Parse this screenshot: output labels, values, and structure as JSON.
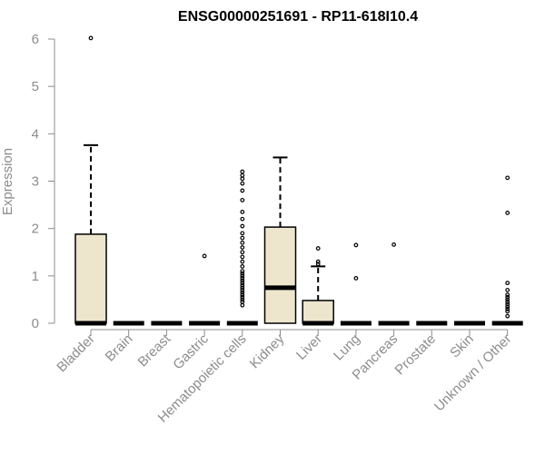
{
  "chart_data": {
    "type": "box",
    "title": "ENSG00000251691 - RP11-618I10.4",
    "xlabel": "",
    "ylabel": "Expression",
    "ylim": [
      0,
      6
    ],
    "yticks": [
      "0",
      "1",
      "2",
      "3",
      "4",
      "5",
      "6"
    ],
    "grid": false,
    "box_fill": "#ede6cd",
    "outline_color": "#000000",
    "axis_text_color": "#8c8c8c",
    "categories": [
      "Bladder",
      "Brain",
      "Breast",
      "Gastric",
      "Hematopoietic cells",
      "Kidney",
      "Liver",
      "Lung",
      "Pancreas",
      "Prostate",
      "Skin",
      "Unknown / Other"
    ],
    "boxes": [
      {
        "category": "Bladder",
        "q1": 0,
        "median": 0,
        "q3": 1.88,
        "whisker_low": 0,
        "whisker_high": 3.76,
        "outliers": [
          6.02
        ]
      },
      {
        "category": "Brain",
        "q1": 0,
        "median": 0,
        "q3": 0,
        "whisker_low": 0,
        "whisker_high": 0,
        "outliers": []
      },
      {
        "category": "Breast",
        "q1": 0,
        "median": 0,
        "q3": 0,
        "whisker_low": 0,
        "whisker_high": 0,
        "outliers": []
      },
      {
        "category": "Gastric",
        "q1": 0,
        "median": 0,
        "q3": 0,
        "whisker_low": 0,
        "whisker_high": 0,
        "outliers": [
          1.42
        ]
      },
      {
        "category": "Hematopoietic cells",
        "q1": 0,
        "median": 0,
        "q3": 0,
        "whisker_low": 0,
        "whisker_high": 0,
        "outliers": [
          0.38,
          0.45,
          0.5,
          0.55,
          0.6,
          0.65,
          0.7,
          0.75,
          0.8,
          0.85,
          0.9,
          0.95,
          1.0,
          1.05,
          1.1,
          1.2,
          1.3,
          1.4,
          1.5,
          1.6,
          1.7,
          1.8,
          1.9,
          2.05,
          2.2,
          2.35,
          2.6,
          2.8,
          2.95,
          3.05,
          3.12,
          3.2
        ]
      },
      {
        "category": "Kidney",
        "q1": 0,
        "median": 0.75,
        "q3": 2.03,
        "whisker_low": 0,
        "whisker_high": 3.5,
        "outliers": []
      },
      {
        "category": "Liver",
        "q1": 0,
        "median": 0,
        "q3": 0.48,
        "whisker_low": 0,
        "whisker_high": 1.2,
        "outliers": [
          1.25,
          1.3,
          1.58
        ]
      },
      {
        "category": "Lung",
        "q1": 0,
        "median": 0,
        "q3": 0,
        "whisker_low": 0,
        "whisker_high": 0,
        "outliers": [
          0.95,
          1.65
        ]
      },
      {
        "category": "Pancreas",
        "q1": 0,
        "median": 0,
        "q3": 0,
        "whisker_low": 0,
        "whisker_high": 0,
        "outliers": [
          1.66
        ]
      },
      {
        "category": "Prostate",
        "q1": 0,
        "median": 0,
        "q3": 0,
        "whisker_low": 0,
        "whisker_high": 0,
        "outliers": []
      },
      {
        "category": "Skin",
        "q1": 0,
        "median": 0,
        "q3": 0,
        "whisker_low": 0,
        "whisker_high": 0,
        "outliers": []
      },
      {
        "category": "Unknown / Other",
        "q1": 0,
        "median": 0,
        "q3": 0,
        "whisker_low": 0,
        "whisker_high": 0,
        "outliers": [
          0.15,
          0.25,
          0.3,
          0.35,
          0.4,
          0.45,
          0.5,
          0.55,
          0.6,
          0.7,
          0.85,
          2.33,
          3.07
        ]
      }
    ]
  }
}
